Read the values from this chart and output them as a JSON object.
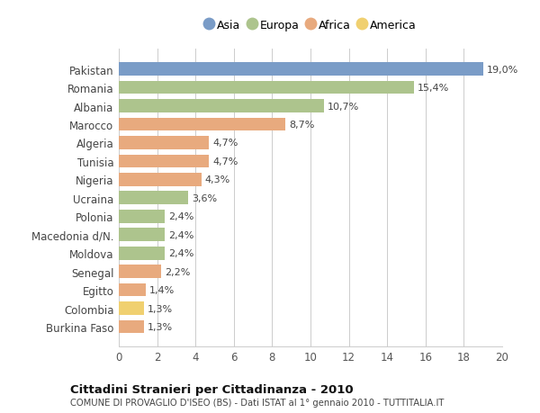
{
  "categories": [
    "Pakistan",
    "Romania",
    "Albania",
    "Marocco",
    "Algeria",
    "Tunisia",
    "Nigeria",
    "Ucraina",
    "Polonia",
    "Macedonia d/N.",
    "Moldova",
    "Senegal",
    "Egitto",
    "Colombia",
    "Burkina Faso"
  ],
  "values": [
    19.0,
    15.4,
    10.7,
    8.7,
    4.7,
    4.7,
    4.3,
    3.6,
    2.4,
    2.4,
    2.4,
    2.2,
    1.4,
    1.3,
    1.3
  ],
  "labels": [
    "19,0%",
    "15,4%",
    "10,7%",
    "8,7%",
    "4,7%",
    "4,7%",
    "4,3%",
    "3,6%",
    "2,4%",
    "2,4%",
    "2,4%",
    "2,2%",
    "1,4%",
    "1,3%",
    "1,3%"
  ],
  "continents": [
    "Asia",
    "Europa",
    "Europa",
    "Africa",
    "Africa",
    "Africa",
    "Africa",
    "Europa",
    "Europa",
    "Europa",
    "Europa",
    "Africa",
    "Africa",
    "America",
    "Africa"
  ],
  "colors": {
    "Asia": "#7a9cc7",
    "Europa": "#adc48d",
    "Africa": "#e8aa7e",
    "America": "#f0d070"
  },
  "legend_order": [
    "Asia",
    "Europa",
    "Africa",
    "America"
  ],
  "title": "Cittadini Stranieri per Cittadinanza - 2010",
  "subtitle": "COMUNE DI PROVAGLIO D'ISEO (BS) - Dati ISTAT al 1° gennaio 2010 - TUTTITALIA.IT",
  "xlim": [
    0,
    20
  ],
  "xticks": [
    0,
    2,
    4,
    6,
    8,
    10,
    12,
    14,
    16,
    18,
    20
  ],
  "background_color": "#ffffff",
  "grid_color": "#cccccc"
}
